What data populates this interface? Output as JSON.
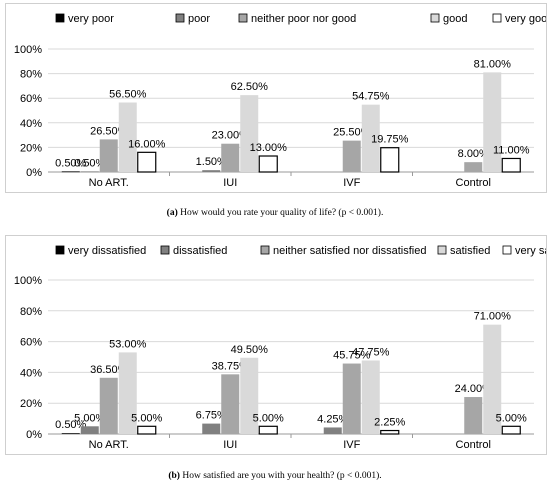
{
  "chart_data": [
    {
      "type": "bar",
      "categories": [
        "No ART.",
        "IUI",
        "IVF",
        "Control"
      ],
      "ylim": [
        0,
        100
      ],
      "yticks": [
        "0%",
        "20%",
        "40%",
        "60%",
        "80%",
        "100%"
      ],
      "legend_position": "top",
      "grid": true,
      "series": [
        {
          "name": "very poor",
          "color": "#000000",
          "values": [
            0.5,
            0,
            0,
            0
          ],
          "labels": [
            "0.50%",
            "",
            "",
            ""
          ]
        },
        {
          "name": "poor",
          "color": "#808080",
          "values": [
            0.5,
            1.5,
            0,
            0
          ],
          "labels": [
            "0.50%",
            "1.50%",
            "",
            ""
          ]
        },
        {
          "name": "neither poor nor good",
          "color": "#a6a6a6",
          "values": [
            26.5,
            23.0,
            25.5,
            8.0
          ],
          "labels": [
            "26.50%",
            "23.00%",
            "25.50%",
            "8.00%"
          ]
        },
        {
          "name": "good",
          "color": "#d9d9d9",
          "values": [
            56.5,
            62.5,
            54.75,
            81.0
          ],
          "labels": [
            "56.50%",
            "62.50%",
            "54.75%",
            "81.00%"
          ]
        },
        {
          "name": "very good",
          "color": "#ffffff",
          "values": [
            16.0,
            13.0,
            19.75,
            11.0
          ],
          "labels": [
            "16.00%",
            "13.00%",
            "19.75%",
            "11.00%"
          ]
        }
      ],
      "caption_label": "(a)",
      "caption_text": " How would you rate your quality of life? (p < 0.001)."
    },
    {
      "type": "bar",
      "categories": [
        "No ART.",
        "IUI",
        "IVF",
        "Control"
      ],
      "ylim": [
        0,
        100
      ],
      "yticks": [
        "0%",
        "20%",
        "40%",
        "60%",
        "80%",
        "100%"
      ],
      "legend_position": "top",
      "grid": true,
      "series": [
        {
          "name": "very dissatisfied",
          "color": "#000000",
          "values": [
            0.5,
            0,
            0,
            0
          ],
          "labels": [
            "0.50%",
            "",
            "",
            ""
          ]
        },
        {
          "name": "dissatisfied",
          "color": "#808080",
          "values": [
            5.0,
            6.75,
            4.25,
            0
          ],
          "labels": [
            "5.00%",
            "6.75%",
            "4.25%",
            ""
          ]
        },
        {
          "name": "neither satisfied nor dissatisfied",
          "color": "#a6a6a6",
          "values": [
            36.5,
            38.75,
            45.75,
            24.0
          ],
          "labels": [
            "36.50%",
            "38.75%",
            "45.75%",
            "24.00%"
          ]
        },
        {
          "name": "satisfied",
          "color": "#d9d9d9",
          "values": [
            53.0,
            49.5,
            47.75,
            71.0
          ],
          "labels": [
            "53.00%",
            "49.50%",
            "47.75%",
            "71.00%"
          ]
        },
        {
          "name": "very satisfied",
          "color": "#ffffff",
          "values": [
            5.0,
            5.0,
            2.25,
            5.0
          ],
          "labels": [
            "5.00%",
            "5.00%",
            "2.25%",
            "5.00%"
          ]
        }
      ],
      "caption_label": "(b)",
      "caption_text": " How satisfied are you with your health? (p < 0.001)."
    }
  ]
}
